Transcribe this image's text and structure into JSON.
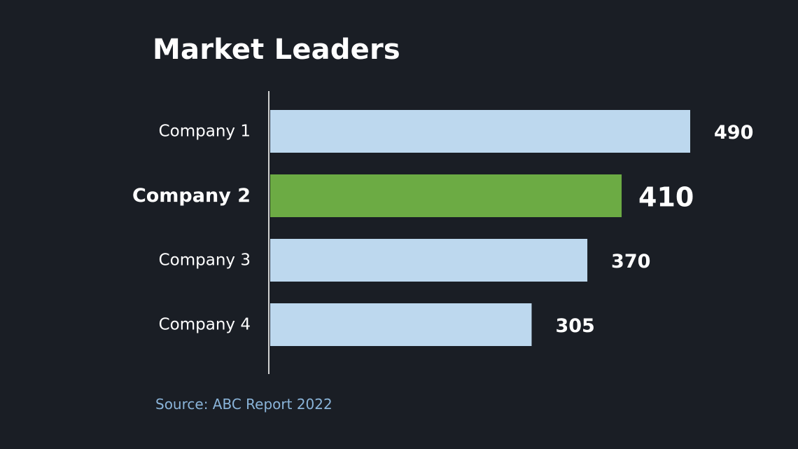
{
  "chart_data": {
    "type": "bar",
    "orientation": "horizontal",
    "title": "Market Leaders",
    "categories": [
      "Company 1",
      "Company 2",
      "Company 3",
      "Company 4"
    ],
    "values": [
      490,
      410,
      370,
      305
    ],
    "highlighted_category": "Company 2",
    "xlabel": "",
    "ylabel": "",
    "xlim": [
      0,
      490
    ],
    "grid": false,
    "legend": "none",
    "source": "Source: ABC Report 2022"
  },
  "colors": {
    "background": "#1a1e25",
    "bar": "#bdd8ee",
    "bar_highlight": "#6cab44",
    "text": "#ffffff",
    "source_text": "#8ab4d9",
    "axis": "#d0d0d0"
  }
}
